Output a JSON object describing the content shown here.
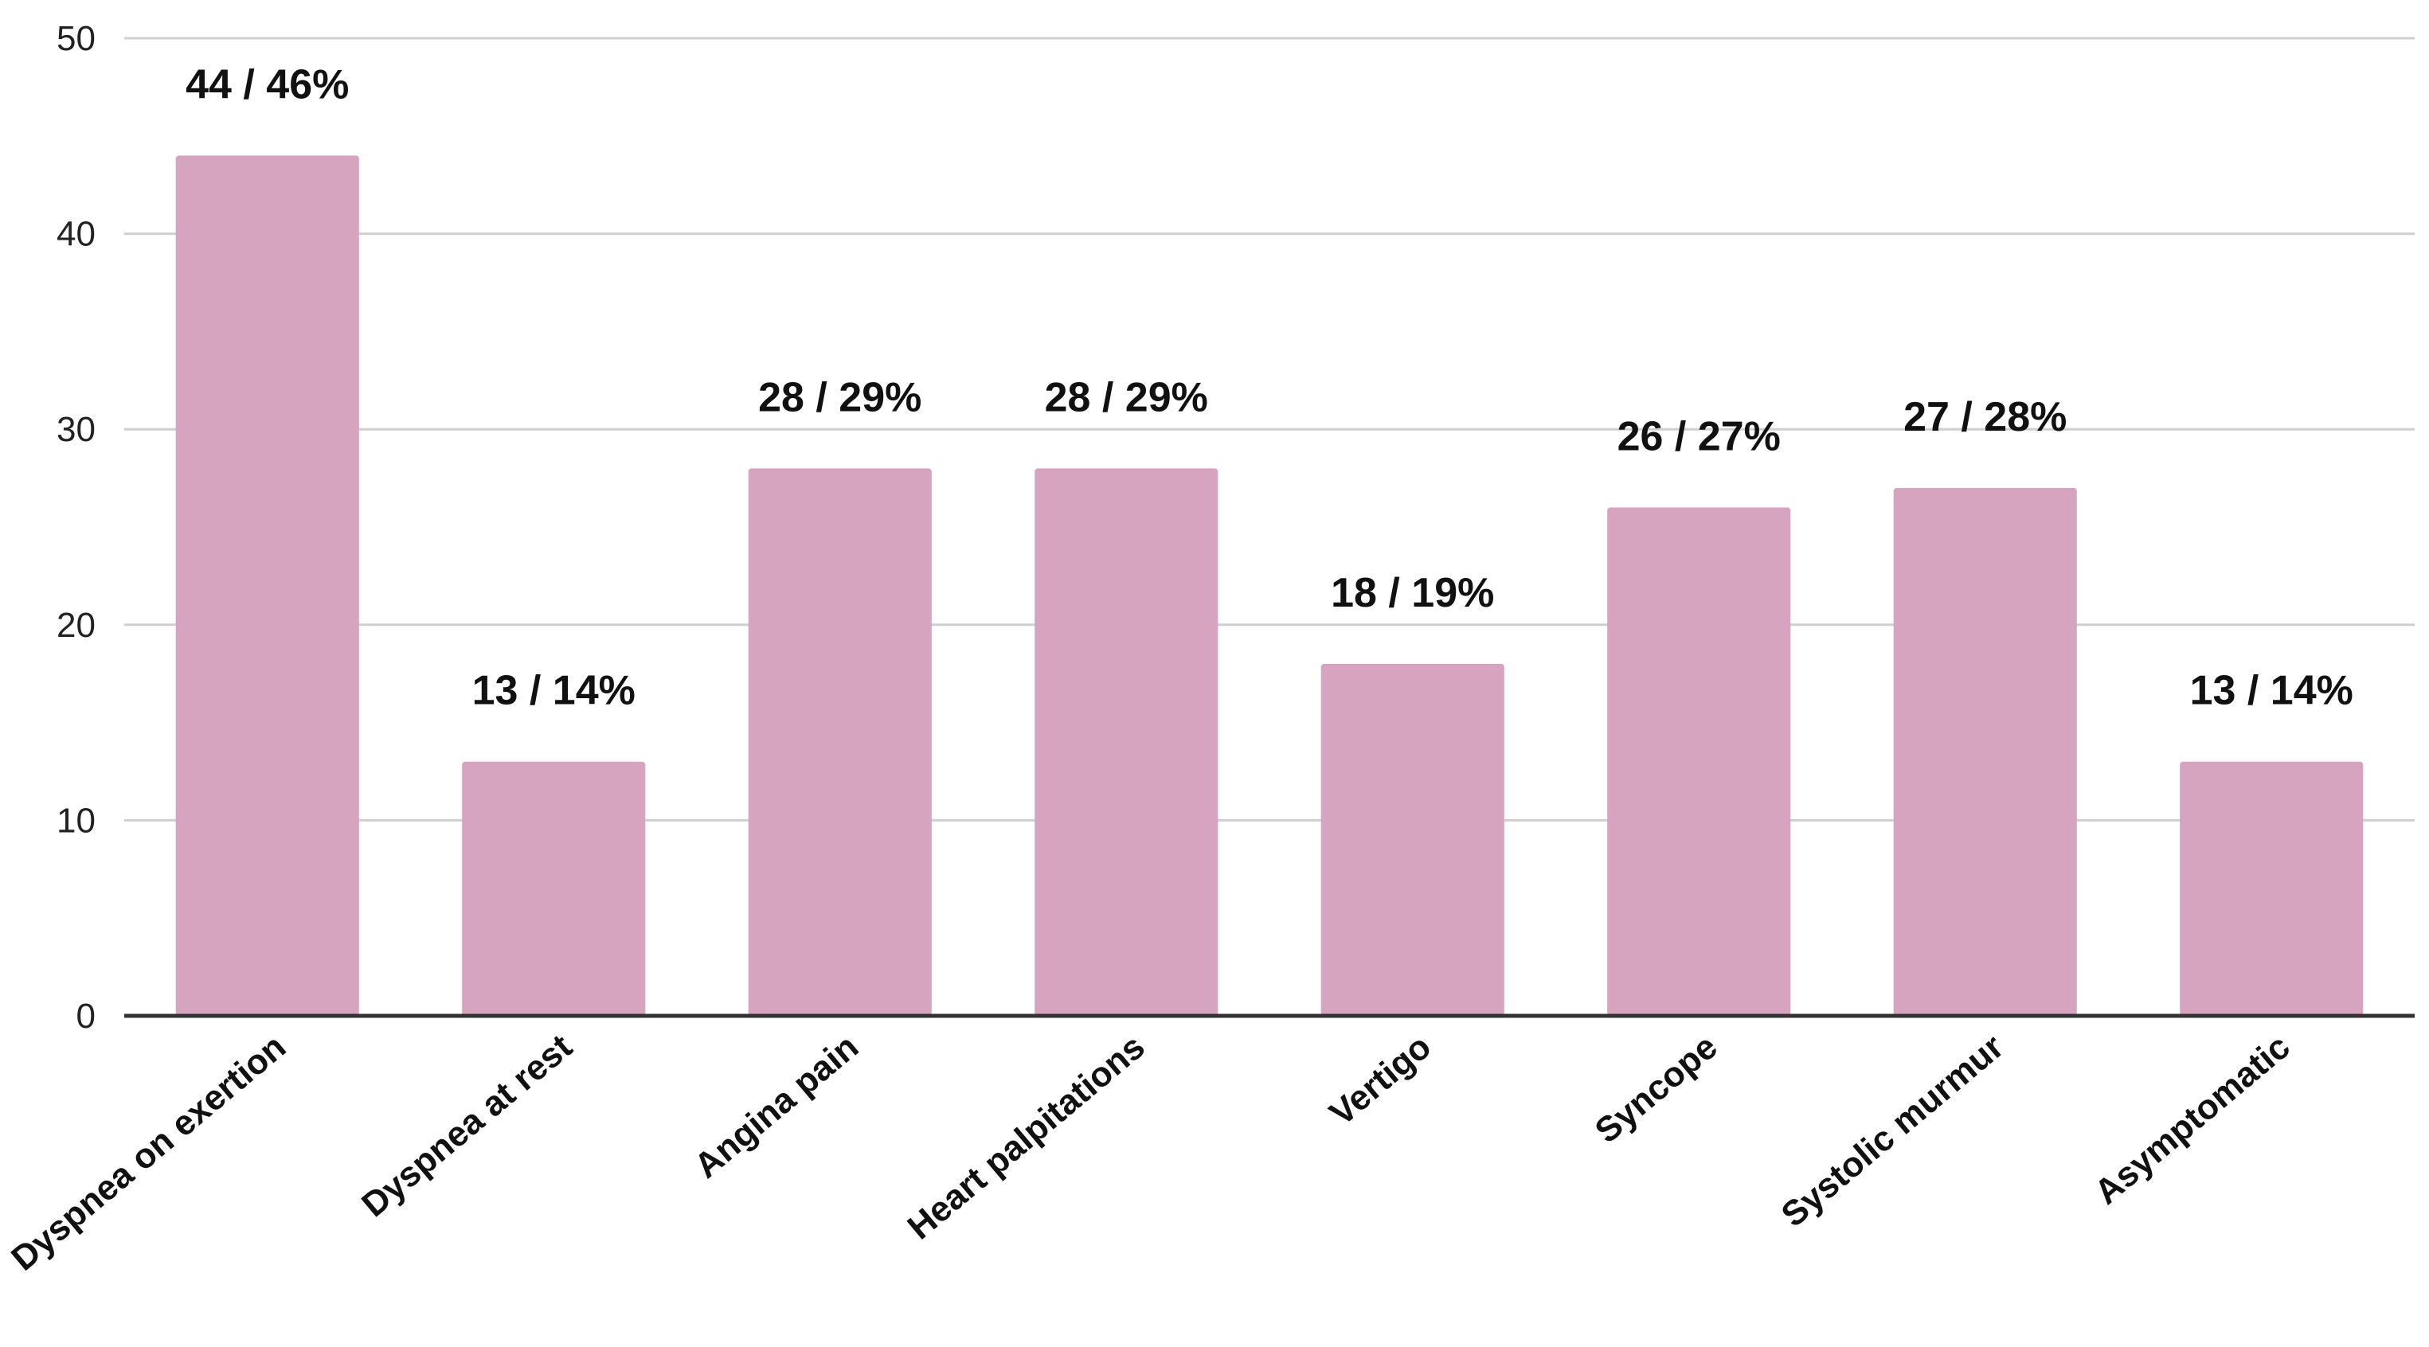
{
  "chart_data": {
    "type": "bar",
    "categories": [
      "Dyspnea on exertion",
      "Dyspnea at rest",
      "Angina pain",
      "Heart palpitations",
      "Vertigo",
      "Syncope",
      "Systolic murmur",
      "Asymptomatic"
    ],
    "values": [
      44,
      13,
      28,
      28,
      18,
      26,
      27,
      13
    ],
    "data_labels": [
      "44 / 46%",
      "13 / 14%",
      "28 / 29%",
      "28 / 29%",
      "18 / 19%",
      "26 / 27%",
      "27 / 28%",
      "13 / 14%"
    ],
    "yticks": [
      0,
      10,
      20,
      30,
      40,
      50
    ],
    "ylim": [
      0,
      50
    ],
    "title": "",
    "xlabel": "",
    "ylabel": "",
    "grid": true,
    "bar_color": "#d6a4be"
  }
}
